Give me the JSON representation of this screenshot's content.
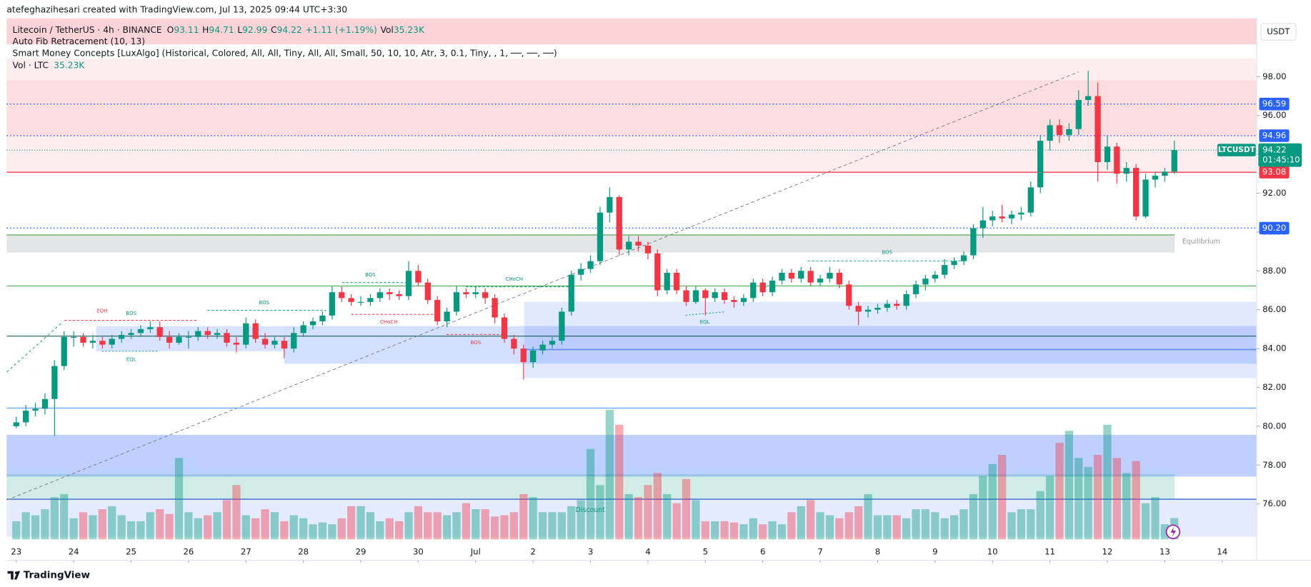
{
  "header": {
    "credit": "atefeghazihesari created with TradingView.com, Jul 13, 2025 09:44 UTC+3:30"
  },
  "legend": {
    "symbol": "Litecoin / TetherUS · 4h · BINANCE",
    "ohlc": [
      "O",
      "93.11",
      "H",
      "94.71",
      "L",
      "92.99",
      "C",
      "94.22",
      "+1.11 (+1.19%)",
      "Vol",
      "35.23K"
    ],
    "indicators": [
      "Auto Fib Retracement (10, 13)",
      "Smart Money Concepts [LuxAlgo] (Historical, Colored, All, All, Tiny, All, All, Small, 50, 10, 10, Atr, 3, 0.1, Tiny, , 1, ──, ──, ──)"
    ],
    "volume": [
      "Vol · LTC",
      "35.23K"
    ]
  },
  "annotations": [
    "EQH",
    "BOS",
    "EQL",
    "BOS",
    "BOS",
    "CHoCH",
    "CHoCH",
    "BOS",
    "EQL",
    "BOS",
    "Equilibrium",
    "Discount"
  ],
  "footer": "TradingView",
  "chart_data": {
    "type": "candlestick",
    "currency": "USDT",
    "up_color": "#089981",
    "down_color": "#f23645",
    "open": [
      80.0,
      80.2,
      80.8,
      80.9,
      81.4,
      83.1,
      84.6,
      84.6,
      84.3,
      84.4,
      84.2,
      84.5,
      84.7,
      84.8,
      85.0,
      85.1,
      84.6,
      84.3,
      84.6,
      84.6,
      84.9,
      84.7,
      84.8,
      84.3,
      84.2,
      85.3,
      84.5,
      84.2,
      84.4,
      84.0,
      84.8,
      85.2,
      85.4,
      85.7,
      86.9,
      86.6,
      86.4,
      86.4,
      86.6,
      86.9,
      86.8,
      86.7,
      88.0,
      87.4,
      86.5,
      85.4,
      85.9,
      86.9,
      86.8,
      86.9,
      86.6,
      85.6,
      84.5,
      84.0,
      83.3,
      83.9,
      84.2,
      84.4,
      85.9,
      87.8,
      88.1,
      88.5,
      91.0,
      91.8,
      89.1,
      89.5,
      89.3,
      88.9,
      87.0,
      87.9,
      87.0,
      86.4,
      87.0,
      86.6,
      86.9,
      86.5,
      86.4,
      86.6,
      87.4,
      86.9,
      87.5,
      87.9,
      87.6,
      88.0,
      87.4,
      87.6,
      87.9,
      87.3,
      86.2,
      85.9,
      86.0,
      86.1,
      86.3,
      86.2,
      86.8,
      87.3,
      87.6,
      87.8,
      88.3,
      88.5,
      88.8,
      90.2,
      90.6,
      90.8,
      90.7,
      90.9,
      91.0,
      92.3,
      94.7,
      95.5,
      95.0,
      95.3,
      96.8,
      97.0,
      93.6,
      94.4,
      93.0,
      93.3,
      90.8,
      92.7,
      92.9,
      93.11
    ],
    "high": [
      80.5,
      81.1,
      81.2,
      81.7,
      83.4,
      84.9,
      84.9,
      84.8,
      84.7,
      84.6,
      84.7,
      84.9,
      85.0,
      85.2,
      85.4,
      85.4,
      84.9,
      84.8,
      84.9,
      85.1,
      85.1,
      85.0,
      85.0,
      84.6,
      85.6,
      85.5,
      84.8,
      84.6,
      84.6,
      85.1,
      85.4,
      85.6,
      85.9,
      87.2,
      87.2,
      86.8,
      86.7,
      86.8,
      87.1,
      87.1,
      87.0,
      88.5,
      88.3,
      87.6,
      86.7,
      86.1,
      87.2,
      87.1,
      87.2,
      87.1,
      86.8,
      85.8,
      84.7,
      84.2,
      84.1,
      84.4,
      84.6,
      86.1,
      88.0,
      88.4,
      88.8,
      91.3,
      92.3,
      91.9,
      89.8,
      89.8,
      89.5,
      89.1,
      88.1,
      88.1,
      87.2,
      87.2,
      87.1,
      87.1,
      87.1,
      86.7,
      86.8,
      87.6,
      87.6,
      87.7,
      88.1,
      88.1,
      88.2,
      88.2,
      87.8,
      88.2,
      88.1,
      87.5,
      86.4,
      86.2,
      86.3,
      86.5,
      86.5,
      87.0,
      87.5,
      87.8,
      88.0,
      88.6,
      88.7,
      89.0,
      90.4,
      91.3,
      91.1,
      91.4,
      91.1,
      91.3,
      92.6,
      95.0,
      95.8,
      95.8,
      95.6,
      97.3,
      98.3,
      97.7,
      95.0,
      94.6,
      93.6,
      93.5,
      93.0,
      93.1,
      93.3,
      94.71
    ],
    "low": [
      79.9,
      80.0,
      80.5,
      80.6,
      79.5,
      82.9,
      84.1,
      84.1,
      84.0,
      84.0,
      84.0,
      84.3,
      84.5,
      84.6,
      84.8,
      84.4,
      84.0,
      84.2,
      84.0,
      84.4,
      84.5,
      84.5,
      84.1,
      83.8,
      84.0,
      84.3,
      84.0,
      84.0,
      83.5,
      83.8,
      84.6,
      85.0,
      85.2,
      85.5,
      86.4,
      86.2,
      86.2,
      86.2,
      86.4,
      86.5,
      86.5,
      86.5,
      87.2,
      86.3,
      85.2,
      85.1,
      85.7,
      86.6,
      86.6,
      86.3,
      85.3,
      84.3,
      83.7,
      82.4,
      83.0,
      83.7,
      84.0,
      84.2,
      85.7,
      87.5,
      87.9,
      88.3,
      90.5,
      88.8,
      88.8,
      89.0,
      88.6,
      86.7,
      86.8,
      86.8,
      86.2,
      86.3,
      85.7,
      86.4,
      86.3,
      86.1,
      86.2,
      86.4,
      86.7,
      86.7,
      87.3,
      87.4,
      87.4,
      87.2,
      87.2,
      87.4,
      87.1,
      86.0,
      85.2,
      85.6,
      85.8,
      85.9,
      86.0,
      86.0,
      86.6,
      87.0,
      87.4,
      87.6,
      88.1,
      88.3,
      88.6,
      89.7,
      90.3,
      90.5,
      90.4,
      90.6,
      90.8,
      92.0,
      94.2,
      94.6,
      94.7,
      95.0,
      96.5,
      92.6,
      93.2,
      92.5,
      92.6,
      90.6,
      90.7,
      92.3,
      92.6,
      92.99
    ],
    "close": [
      80.2,
      80.8,
      80.9,
      81.4,
      83.1,
      84.6,
      84.6,
      84.3,
      84.4,
      84.2,
      84.5,
      84.7,
      84.8,
      85.0,
      85.1,
      84.6,
      84.3,
      84.6,
      84.6,
      84.9,
      84.7,
      84.8,
      84.3,
      84.2,
      85.3,
      84.5,
      84.2,
      84.4,
      84.0,
      84.8,
      85.2,
      85.4,
      85.7,
      86.9,
      86.6,
      86.4,
      86.4,
      86.6,
      86.9,
      86.8,
      86.7,
      88.0,
      87.4,
      86.5,
      85.4,
      85.9,
      86.9,
      86.8,
      86.9,
      86.6,
      85.6,
      84.5,
      84.0,
      83.3,
      83.9,
      84.2,
      84.4,
      85.9,
      87.8,
      88.1,
      88.5,
      91.0,
      91.8,
      89.1,
      89.5,
      89.3,
      88.9,
      87.0,
      87.9,
      87.0,
      86.4,
      87.0,
      86.6,
      86.9,
      86.5,
      86.4,
      86.6,
      87.4,
      86.9,
      87.5,
      87.9,
      87.6,
      88.0,
      87.4,
      87.6,
      87.9,
      87.3,
      86.2,
      85.9,
      86.0,
      86.1,
      86.3,
      86.2,
      86.8,
      87.3,
      87.6,
      87.8,
      88.3,
      88.5,
      88.8,
      90.2,
      90.6,
      90.8,
      90.7,
      90.9,
      91.0,
      92.3,
      94.7,
      95.5,
      95.0,
      95.3,
      96.8,
      97.0,
      93.6,
      94.4,
      93.0,
      93.3,
      90.8,
      92.7,
      92.9,
      93.11,
      94.22
    ],
    "volume": [
      30,
      45,
      40,
      50,
      70,
      75,
      35,
      45,
      40,
      50,
      55,
      40,
      30,
      30,
      45,
      50,
      42,
      135,
      45,
      35,
      40,
      45,
      65,
      90,
      40,
      35,
      50,
      45,
      30,
      40,
      35,
      25,
      28,
      25,
      35,
      55,
      55,
      45,
      30,
      35,
      30,
      45,
      55,
      45,
      45,
      40,
      45,
      60,
      50,
      50,
      38,
      40,
      45,
      75,
      70,
      45,
      45,
      45,
      55,
      65,
      150,
      90,
      215,
      190,
      75,
      70,
      90,
      110,
      75,
      60,
      100,
      65,
      30,
      30,
      30,
      28,
      25,
      35,
      25,
      30,
      25,
      45,
      55,
      65,
      45,
      40,
      35,
      45,
      55,
      75,
      40,
      40,
      40,
      35,
      50,
      50,
      45,
      35,
      40,
      50,
      75,
      105,
      125,
      140,
      45,
      50,
      50,
      80,
      105,
      160,
      180,
      135,
      120,
      140,
      190,
      135,
      110,
      130,
      60,
      70,
      25,
      35.23
    ],
    "xlim": [
      -1,
      129.6
    ],
    "xticks": [
      {
        "value": 0,
        "label": "23"
      },
      {
        "value": 6,
        "label": "24"
      },
      {
        "value": 12,
        "label": "25"
      },
      {
        "value": 18,
        "label": "26"
      },
      {
        "value": 24,
        "label": "27"
      },
      {
        "value": 30,
        "label": "28"
      },
      {
        "value": 36,
        "label": "29"
      },
      {
        "value": 42,
        "label": "30"
      },
      {
        "value": 48,
        "label": "Jul"
      },
      {
        "value": 54,
        "label": "2"
      },
      {
        "value": 60,
        "label": "3"
      },
      {
        "value": 66,
        "label": "4"
      },
      {
        "value": 72,
        "label": "5"
      },
      {
        "value": 78,
        "label": "6"
      },
      {
        "value": 84,
        "label": "7"
      },
      {
        "value": 90,
        "label": "8"
      },
      {
        "value": 96,
        "label": "9"
      },
      {
        "value": 102,
        "label": "10"
      },
      {
        "value": 108,
        "label": "11"
      },
      {
        "value": 114,
        "label": "12"
      },
      {
        "value": 120,
        "label": "13"
      },
      {
        "value": 126,
        "label": "14"
      }
    ],
    "ylim": [
      73.1,
      101.0
    ],
    "yticks": [
      {
        "value": 76,
        "label": "76.00"
      },
      {
        "value": 78,
        "label": "78.00"
      },
      {
        "value": 80,
        "label": "80.00"
      },
      {
        "value": 82,
        "label": "82.00"
      },
      {
        "value": 84,
        "label": "84.00"
      },
      {
        "value": 86,
        "label": "86.00"
      },
      {
        "value": 88,
        "label": "88.00"
      },
      {
        "value": 90,
        "label": "90.00"
      },
      {
        "value": 92,
        "label": "92.00"
      },
      {
        "value": 94,
        "label": "94.00"
      },
      {
        "value": 96,
        "label": "96.00"
      },
      {
        "value": 98,
        "label": "98.00"
      }
    ],
    "price_lines": [
      {
        "value": 96.59,
        "label": "96.59",
        "color": "#2962ff",
        "style": "dotted"
      },
      {
        "value": 94.96,
        "label": "94.96",
        "color": "#2962ff",
        "style": "dotted"
      },
      {
        "value": 93.08,
        "label": "93.08",
        "color": "#f23645",
        "style": "solid"
      },
      {
        "value": 90.2,
        "label": "90.20",
        "color": "#2962ff",
        "style": "dotted"
      }
    ],
    "current_price": {
      "symbol": "LTCUSDT",
      "value": 94.22,
      "label": "94.22",
      "countdown": "01:45:10",
      "color": "#089981"
    }
  }
}
